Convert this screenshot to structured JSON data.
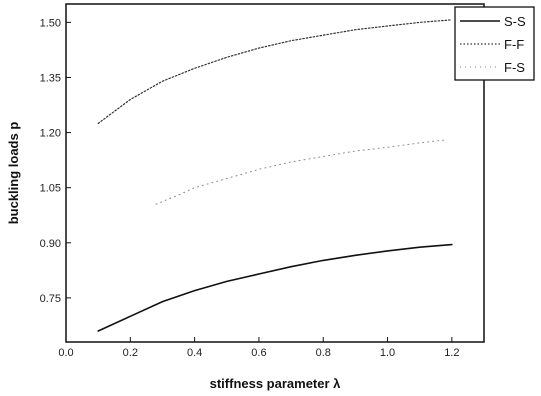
{
  "chart_data": {
    "type": "line",
    "xlabel": "stiffness parameter λ",
    "ylabel": "buckling loads p",
    "xlim": [
      0.0,
      1.3
    ],
    "ylim": [
      0.63,
      1.55
    ],
    "x_ticks": [
      "0.0",
      "0.2",
      "0.4",
      "0.6",
      "0.8",
      "1.0",
      "1.2"
    ],
    "y_ticks": [
      "0.75",
      "0.90",
      "1.05",
      "1.20",
      "1.35",
      "1.50"
    ],
    "grid": false,
    "legend": "top-right",
    "series": [
      {
        "name": "S-S",
        "style": "solid",
        "color": "#111111",
        "x": [
          0.1,
          0.2,
          0.3,
          0.4,
          0.5,
          0.6,
          0.7,
          0.8,
          0.9,
          1.0,
          1.1,
          1.2
        ],
        "y": [
          0.66,
          0.7,
          0.74,
          0.77,
          0.795,
          0.815,
          0.835,
          0.852,
          0.866,
          0.878,
          0.888,
          0.895
        ]
      },
      {
        "name": "F-F",
        "style": "dotted",
        "color": "#333333",
        "x": [
          0.1,
          0.2,
          0.3,
          0.4,
          0.5,
          0.6,
          0.7,
          0.8,
          0.9,
          1.0,
          1.1,
          1.2
        ],
        "y": [
          1.225,
          1.29,
          1.34,
          1.375,
          1.405,
          1.43,
          1.45,
          1.465,
          1.48,
          1.49,
          1.5,
          1.507
        ]
      },
      {
        "name": "F-S",
        "style": "dotted-light",
        "color": "#888888",
        "x": [
          0.28,
          0.35,
          0.4,
          0.5,
          0.6,
          0.7,
          0.8,
          0.9,
          1.0,
          1.1,
          1.18
        ],
        "y": [
          1.005,
          1.03,
          1.05,
          1.075,
          1.1,
          1.12,
          1.135,
          1.15,
          1.16,
          1.172,
          1.18
        ]
      }
    ]
  }
}
